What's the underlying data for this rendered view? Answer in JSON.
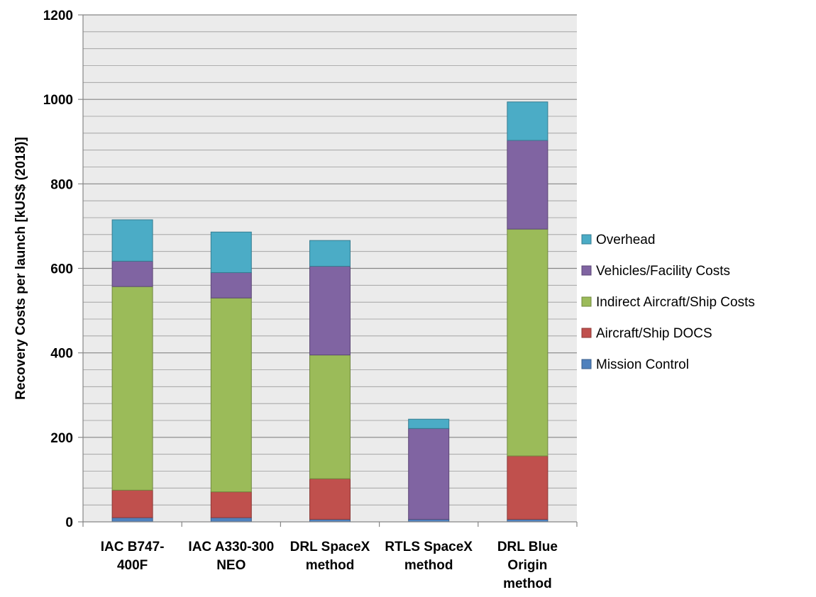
{
  "chart_data": {
    "type": "bar",
    "stacked": true,
    "title": "",
    "xlabel": "",
    "ylabel": "Recovery Costs per launch [kUS$ (2018)]",
    "ylim": [
      0,
      1200
    ],
    "major_ticks": [
      0,
      200,
      400,
      600,
      800,
      1000,
      1200
    ],
    "minor_tick_step": 40,
    "grid": true,
    "legend_position": "right",
    "categories": [
      [
        "IAC B747-",
        "400F"
      ],
      [
        "IAC A330-300",
        "NEO"
      ],
      [
        "DRL SpaceX",
        "method"
      ],
      [
        "RTLS SpaceX",
        "method"
      ],
      [
        "DRL Blue",
        "Origin",
        "method"
      ]
    ],
    "series": [
      {
        "name": "Mission Control",
        "color": "#4F81BD",
        "stroke": "#385D8A",
        "values": [
          10,
          10,
          6,
          6,
          6
        ]
      },
      {
        "name": "Aircraft/Ship DOCS",
        "color": "#C0504D",
        "stroke": "#8C3836",
        "values": [
          65,
          61,
          96,
          0,
          150
        ]
      },
      {
        "name": "Indirect Aircraft/Ship Costs",
        "color": "#9BBB59",
        "stroke": "#71893F",
        "values": [
          482,
          459,
          293,
          0,
          537
        ]
      },
      {
        "name": "Vehicles/Facility Costs",
        "color": "#8064A2",
        "stroke": "#5C4776",
        "values": [
          60,
          60,
          210,
          215,
          210
        ]
      },
      {
        "name": "Overhead",
        "color": "#4BACC6",
        "stroke": "#357D91",
        "values": [
          98,
          96,
          61,
          22,
          91
        ]
      }
    ],
    "plot_background": "#EBEBEB",
    "gridline_color": "#9A9A9A"
  }
}
